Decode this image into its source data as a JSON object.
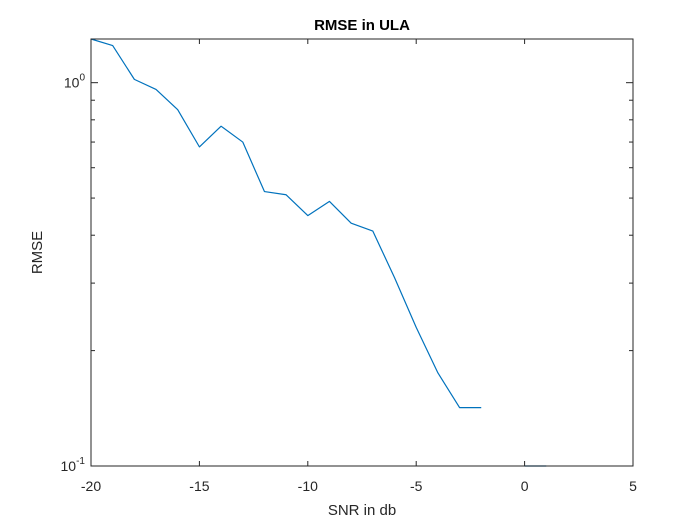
{
  "chart_data": {
    "type": "line",
    "title": "RMSE in ULA",
    "xlabel": "SNR in db",
    "ylabel": "RMSE",
    "xlim": [
      -20,
      5
    ],
    "ylim": [
      0.1,
      1.3
    ],
    "yscale": "log",
    "grid": false,
    "xticks": [
      -20,
      -15,
      -10,
      -5,
      0,
      5
    ],
    "xtick_labels": [
      "-20",
      "-15",
      "-10",
      "-5",
      "0",
      "5"
    ],
    "yticks_major": [
      {
        "value": 1,
        "base": "10",
        "exp": "0"
      },
      {
        "value": 0.1,
        "base": "10",
        "exp": "-1"
      }
    ],
    "yticks_minor": [
      0.2,
      0.3,
      0.4,
      0.5,
      0.6,
      0.7,
      0.8,
      0.9
    ],
    "series": [
      {
        "color": "#0072BD",
        "segments": [
          {
            "x": [
              -20,
              -19,
              -18,
              -17,
              -16,
              -15,
              -14,
              -13,
              -12,
              -11,
              -10,
              -9,
              -8,
              -7,
              -6,
              -5,
              -4,
              -3,
              -2
            ],
            "y": [
              1.3,
              1.25,
              1.02,
              0.96,
              0.85,
              0.68,
              0.77,
              0.7,
              0.52,
              0.51,
              0.45,
              0.49,
              0.43,
              0.41,
              0.31,
              0.23,
              0.175,
              0.142,
              0.142
            ]
          },
          {
            "x": [
              0,
              1
            ],
            "y": [
              0.1,
              0.1
            ]
          }
        ]
      }
    ]
  }
}
